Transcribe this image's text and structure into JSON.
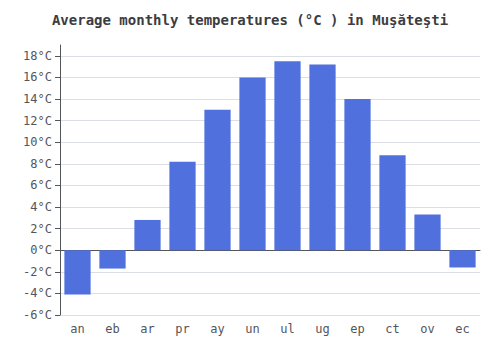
{
  "chart_data": {
    "type": "bar",
    "title": "Average monthly temperatures (°C ) in Muşăteşti",
    "categories": [
      "an",
      "eb",
      "ar",
      "pr",
      "ay",
      "un",
      "ul",
      "ug",
      "ep",
      "ct",
      "ov",
      "ec"
    ],
    "values": [
      -4.1,
      -1.7,
      2.8,
      8.2,
      13.0,
      16.0,
      17.5,
      17.2,
      14.0,
      8.8,
      3.3,
      -1.6
    ],
    "ylim": [
      -6,
      19
    ],
    "yticks": [
      {
        "value": -6,
        "label": "-6°C"
      },
      {
        "value": -4,
        "label": "-4°C"
      },
      {
        "value": -2,
        "label": "-2°C"
      },
      {
        "value": 0,
        "label": "0°C"
      },
      {
        "value": 2,
        "label": "2°C"
      },
      {
        "value": 4,
        "label": "4°C"
      },
      {
        "value": 6,
        "label": "6°C"
      },
      {
        "value": 8,
        "label": "8°C"
      },
      {
        "value": 10,
        "label": "10°C"
      },
      {
        "value": 12,
        "label": "12°C"
      },
      {
        "value": 14,
        "label": "14°C"
      },
      {
        "value": 16,
        "label": "16°C"
      },
      {
        "value": 18,
        "label": "18°C"
      }
    ],
    "grid": true
  }
}
